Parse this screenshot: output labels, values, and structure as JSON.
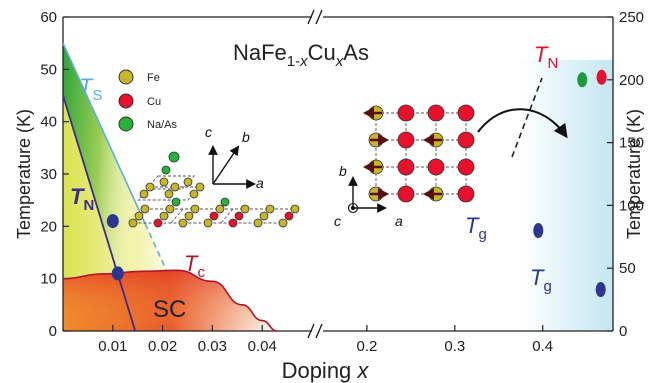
{
  "chart_data": {
    "type": "scatter",
    "title": {
      "pre": "NaFe",
      "sub1": "1-",
      "subx1": "x",
      "mid": "Cu",
      "subx2": "x",
      "post": "As"
    },
    "xlabel": {
      "text": "Doping ",
      "var": "x"
    },
    "ylabel_left": "Temperature (K)",
    "ylabel_right": "Temperature (K)",
    "ylim_left": [
      0,
      60
    ],
    "ylim_right": [
      0,
      250
    ],
    "xlim_left_segment": [
      0,
      0.05
    ],
    "xlim_right_segment": [
      0.15,
      0.48
    ],
    "x_ticks_left": [
      "0.01",
      "0.02",
      "0.03",
      "0.04"
    ],
    "x_ticks_right": [
      "0.2",
      "0.3",
      "0.4"
    ],
    "y_ticks_left": [
      "0",
      "10",
      "20",
      "30",
      "40",
      "50",
      "60"
    ],
    "y_ticks_right": [
      "0",
      "50",
      "100",
      "150",
      "200",
      "250"
    ],
    "region_labels": {
      "TS": {
        "main": "T",
        "sub": "S"
      },
      "TN": {
        "main": "T",
        "sub": "N"
      },
      "Tc": {
        "main": "T",
        "sub": "c"
      },
      "SC": "SC",
      "TN_right": {
        "main": "T",
        "sub": "N"
      },
      "Tg1": {
        "main": "T",
        "sub": "g"
      },
      "Tg2": {
        "main": "T",
        "sub": "g"
      }
    },
    "TS_line": [
      [
        0,
        55
      ],
      [
        0.0165,
        20.5
      ]
    ],
    "TN_line": [
      [
        0,
        45
      ],
      [
        0.0145,
        0
      ]
    ],
    "Tc_curve": [
      [
        0,
        10
      ],
      [
        0.008,
        10.9
      ],
      [
        0.016,
        11.4
      ],
      [
        0.023,
        11.6
      ],
      [
        0.03,
        9.5
      ],
      [
        0.036,
        5
      ],
      [
        0.04,
        2
      ],
      [
        0.043,
        0
      ]
    ],
    "points_left": [
      {
        "x": 0.01,
        "y": 21
      },
      {
        "x": 0.011,
        "y": 11
      }
    ],
    "points_right": [
      {
        "x": 0.445,
        "y": 200,
        "color": "#1e9a3c"
      },
      {
        "x": 0.467,
        "y": 202,
        "color": "#e8102a"
      },
      {
        "x": 0.395,
        "y": 80,
        "color": "#2c3590"
      },
      {
        "x": 0.466,
        "y": 33,
        "color": "#2c3590"
      }
    ],
    "legend": [
      {
        "label": "Fe",
        "color": "#c7b62a"
      },
      {
        "label": "Cu",
        "color": "#e8102a"
      },
      {
        "label": "Na/As",
        "color": "#27b33b"
      }
    ],
    "axis_letters": {
      "a": "a",
      "b": "b",
      "c": "c"
    },
    "colors": {
      "TS": "#5aaee0",
      "TN": "#3d2c8c",
      "Tc": "#b3142c",
      "points": "#2c3590",
      "arrow_dark": "#5a0f0f"
    }
  }
}
